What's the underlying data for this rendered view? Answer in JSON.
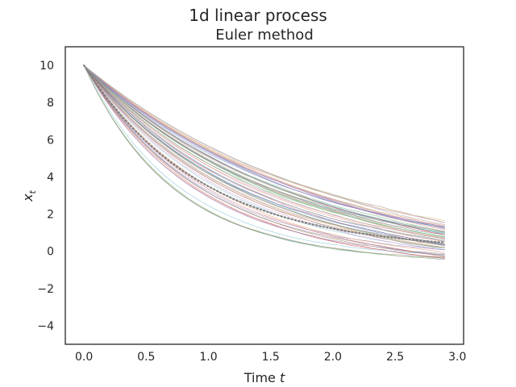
{
  "figure": {
    "suptitle": "1d linear process"
  },
  "chart_data": {
    "type": "line",
    "title": "Euler method",
    "xlabel": "Time",
    "xlabel_var": "t",
    "ylabel_var": "x",
    "ylabel_sub": "t",
    "xlim": [
      -0.15,
      3.05
    ],
    "ylim": [
      -5,
      11
    ],
    "xticks": [
      0.0,
      0.5,
      1.0,
      1.5,
      2.0,
      2.5,
      3.0
    ],
    "yticks": [
      -4,
      -2,
      0,
      2,
      4,
      6,
      8,
      10
    ],
    "xtick_labels": [
      "0.0",
      "0.5",
      "1.0",
      "1.5",
      "2.0",
      "2.5",
      "3.0"
    ],
    "ytick_labels": [
      "−4",
      "−2",
      "0",
      "2",
      "4",
      "6",
      "8",
      "10"
    ],
    "grid": false,
    "mean_series": {
      "style": "dotted",
      "color": "#808080",
      "x": [
        0.0,
        0.1,
        0.2,
        0.3,
        0.4,
        0.5,
        0.6,
        0.7,
        0.8,
        0.9,
        1.0,
        1.1,
        1.2,
        1.3,
        1.4,
        1.5,
        1.6,
        1.7,
        1.8,
        1.9,
        2.0,
        2.1,
        2.2,
        2.3,
        2.4,
        2.5,
        2.6,
        2.7,
        2.8,
        2.9
      ],
      "y": [
        10.0,
        9.0,
        8.1,
        7.29,
        6.56,
        5.9,
        5.31,
        4.78,
        4.3,
        3.87,
        3.49,
        3.14,
        2.82,
        2.54,
        2.29,
        2.06,
        1.85,
        1.67,
        1.5,
        1.35,
        1.22,
        1.09,
        0.98,
        0.89,
        0.8,
        0.72,
        0.65,
        0.58,
        0.52,
        0.47
      ]
    },
    "sample_paths": {
      "count": 60,
      "x_start": 0.0,
      "x_end": 2.9,
      "x0": 10.0,
      "end_range": [
        -0.5,
        1.6
      ],
      "line_width": 0.6,
      "opacity": 0.7,
      "palette": [
        "#4c72b0",
        "#dd8452",
        "#55a868",
        "#c44e52",
        "#8172b3",
        "#937860",
        "#da8bc3",
        "#8c8c8c",
        "#ccb974",
        "#64b5cd"
      ]
    }
  }
}
